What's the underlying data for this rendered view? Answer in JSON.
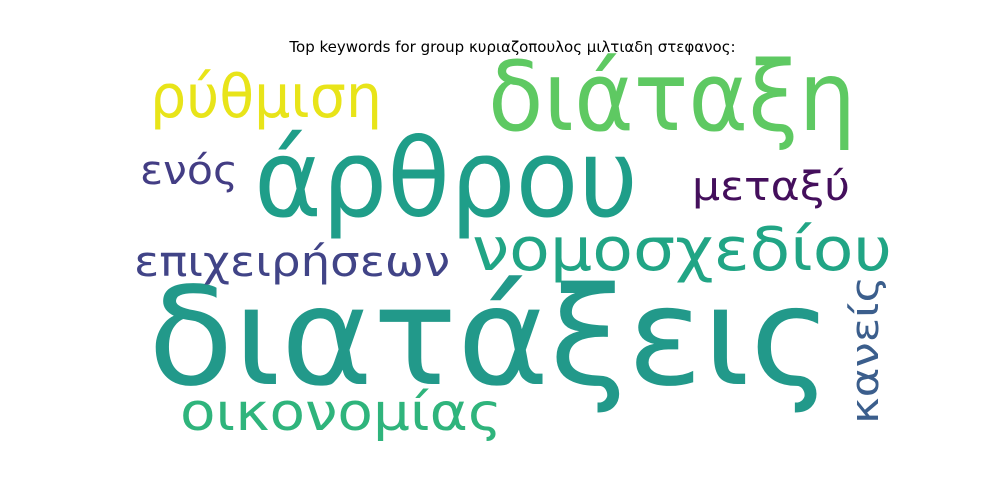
{
  "title": "Top keywords for group κυριαζοπουλος μιλτιαδη στεφανος:",
  "words": {
    "diatakseis": "διατάξεις",
    "arthrou": "άρθρου",
    "diataksi": "διάταξη",
    "nomosxediou": "νομοσχεδίου",
    "oikonomias": "οικονομίας",
    "rythmisi": "ρύθμιση",
    "epixeiriseon": "επιχειρήσεων",
    "metaksy": "μεταξύ",
    "enos": "ενός",
    "kaneis": "κανείς"
  },
  "colors": {
    "diatakseis": "#22998a",
    "arthrou": "#1f9e89",
    "diataksi": "#5ec962",
    "nomosxediou": "#21a585",
    "oikonomias": "#2fb47c",
    "rythmisi": "#e8e419",
    "epixeiriseon": "#414487",
    "metaksy": "#440f5c",
    "enos": "#433d84",
    "kaneis": "#3b5e8c"
  }
}
